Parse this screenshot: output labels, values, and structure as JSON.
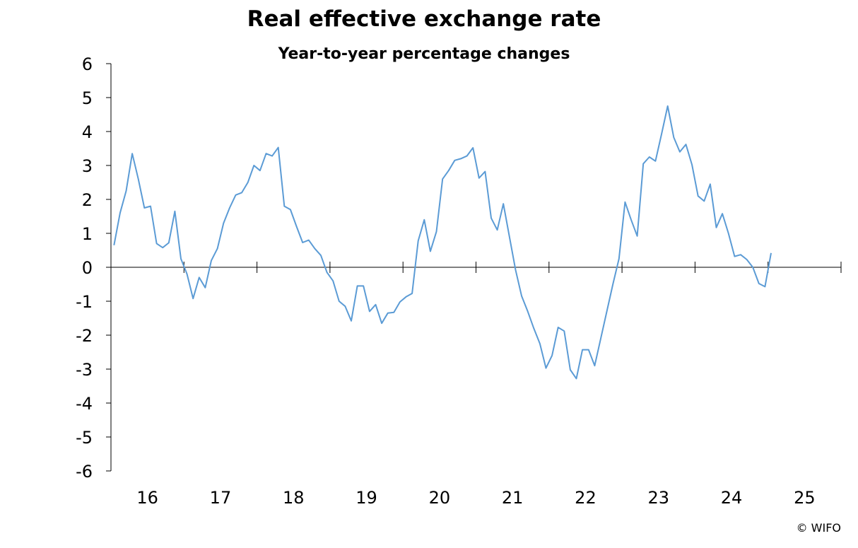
{
  "chart_data": {
    "type": "line",
    "title": "Real effective exchange rate",
    "subtitle": "Year-to-year percentage changes",
    "xlabel": "",
    "ylabel": "",
    "ylim": [
      -6,
      6
    ],
    "y_ticks": [
      "6",
      "5",
      "4",
      "3",
      "2",
      "1",
      "0",
      "-1",
      "-2",
      "-3",
      "-4",
      "-5",
      "-6"
    ],
    "x_tick_labels": [
      "16",
      "17",
      "18",
      "19",
      "20",
      "21",
      "22",
      "23",
      "24",
      "25"
    ],
    "x_start": "2016-01",
    "frequency": "monthly",
    "grid": false,
    "legend": "none",
    "line_color": "#5B9BD5",
    "series": [
      {
        "values": [
          0.65,
          1.6,
          2.25,
          3.35,
          2.6,
          1.75,
          1.8,
          0.7,
          0.58,
          0.72,
          1.65,
          0.25,
          -0.2,
          -0.92,
          -0.3,
          -0.6,
          0.2,
          0.55,
          1.3,
          1.75,
          2.13,
          2.2,
          2.5,
          3.0,
          2.85,
          3.35,
          3.28,
          3.53,
          1.8,
          1.7,
          1.2,
          0.73,
          0.8,
          0.55,
          0.35,
          -0.15,
          -0.4,
          -1.0,
          -1.15,
          -1.58,
          -0.55,
          -0.55,
          -1.3,
          -1.1,
          -1.65,
          -1.35,
          -1.33,
          -1.02,
          -0.87,
          -0.77,
          0.78,
          1.4,
          0.47,
          1.05,
          2.6,
          2.85,
          3.15,
          3.2,
          3.28,
          3.52,
          2.63,
          2.82,
          1.45,
          1.1,
          1.87,
          0.9,
          -0.08,
          -0.85,
          -1.3,
          -1.8,
          -2.25,
          -2.97,
          -2.6,
          -1.77,
          -1.88,
          -3.02,
          -3.28,
          -2.43,
          -2.43,
          -2.9,
          -2.1,
          -1.3,
          -0.5,
          0.25,
          1.92,
          1.4,
          0.92,
          3.05,
          3.25,
          3.13,
          3.93,
          4.75,
          3.83,
          3.4,
          3.62,
          3.02,
          2.1,
          1.95,
          2.45,
          1.17,
          1.58,
          1.0,
          0.32,
          0.37,
          0.23,
          0.0,
          -0.48,
          -0.57,
          0.42
        ]
      }
    ]
  },
  "credit": "© WIFO"
}
